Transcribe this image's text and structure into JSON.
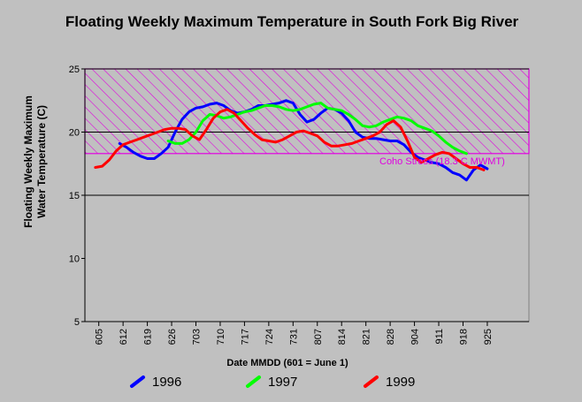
{
  "chart_data": {
    "type": "line",
    "title": "Floating Weekly Maximum Temperature in South Fork Big River",
    "xlabel": "Date MMDD (601 = June 1)",
    "ylabel_line1": "Floating Weekly Maximum",
    "ylabel_line2": "Water Temperature (C)",
    "xlim": [
      0,
      128
    ],
    "ylim": [
      5,
      25
    ],
    "x_ticks": [
      {
        "day": 4,
        "label": "605"
      },
      {
        "day": 11,
        "label": "612"
      },
      {
        "day": 18,
        "label": "619"
      },
      {
        "day": 25,
        "label": "626"
      },
      {
        "day": 32,
        "label": "703"
      },
      {
        "day": 39,
        "label": "710"
      },
      {
        "day": 46,
        "label": "717"
      },
      {
        "day": 53,
        "label": "724"
      },
      {
        "day": 60,
        "label": "731"
      },
      {
        "day": 67,
        "label": "807"
      },
      {
        "day": 74,
        "label": "814"
      },
      {
        "day": 81,
        "label": "821"
      },
      {
        "day": 88,
        "label": "828"
      },
      {
        "day": 95,
        "label": "904"
      },
      {
        "day": 102,
        "label": "911"
      },
      {
        "day": 109,
        "label": "918"
      },
      {
        "day": 116,
        "label": "925"
      }
    ],
    "y_ticks": [
      5,
      10,
      15,
      20,
      25
    ],
    "gridlines_y": [
      15,
      20,
      25
    ],
    "threshold": {
      "label": "Coho Stress (18.3 C MWMT)",
      "low": 18.3,
      "high": 25,
      "color": "#e000e0"
    },
    "series": [
      {
        "name": "1996",
        "color": "#0000ff",
        "x": [
          10,
          12,
          14,
          16,
          18,
          20,
          22,
          24,
          26,
          28,
          30,
          32,
          34,
          36,
          38,
          40,
          42,
          44,
          46,
          48,
          50,
          52,
          54,
          56,
          58,
          60,
          62,
          64,
          66,
          68,
          70,
          72,
          74,
          76,
          78,
          80,
          82,
          84,
          86,
          88,
          90,
          92,
          94,
          96,
          98,
          100,
          102,
          104,
          106,
          108,
          110,
          112,
          114,
          116
        ],
        "y": [
          19.1,
          18.8,
          18.4,
          18.1,
          17.9,
          17.9,
          18.3,
          18.8,
          20.0,
          21.0,
          21.6,
          21.9,
          22.0,
          22.2,
          22.3,
          22.1,
          21.7,
          21.5,
          21.6,
          21.8,
          22.1,
          22.1,
          22.2,
          22.3,
          22.5,
          22.3,
          21.4,
          20.8,
          21.0,
          21.5,
          21.9,
          21.8,
          21.5,
          20.9,
          20.0,
          19.6,
          19.5,
          19.5,
          19.4,
          19.3,
          19.3,
          19.0,
          18.4,
          18.0,
          17.8,
          17.6,
          17.5,
          17.2,
          16.8,
          16.6,
          16.2,
          17.0,
          17.4,
          17.1
        ]
      },
      {
        "name": "1997",
        "color": "#00ff00",
        "x": [
          24,
          26,
          28,
          30,
          32,
          34,
          36,
          38,
          40,
          42,
          44,
          46,
          48,
          50,
          52,
          54,
          56,
          58,
          60,
          62,
          64,
          66,
          68,
          70,
          72,
          74,
          76,
          78,
          80,
          82,
          84,
          86,
          88,
          90,
          92,
          94,
          96,
          98,
          100,
          102,
          104,
          106,
          108,
          110
        ],
        "y": [
          19.3,
          19.1,
          19.1,
          19.4,
          20.0,
          20.9,
          21.4,
          21.3,
          21.1,
          21.2,
          21.4,
          21.6,
          21.7,
          21.9,
          22.1,
          22.1,
          22.0,
          21.8,
          21.7,
          21.8,
          22.0,
          22.2,
          22.3,
          21.9,
          21.8,
          21.7,
          21.4,
          21.0,
          20.5,
          20.4,
          20.5,
          20.8,
          21.0,
          21.2,
          21.1,
          20.9,
          20.5,
          20.3,
          20.1,
          19.7,
          19.2,
          18.8,
          18.5,
          18.3
        ]
      },
      {
        "name": "1999",
        "color": "#ff0000",
        "x": [
          3,
          5,
          7,
          9,
          11,
          13,
          15,
          17,
          19,
          21,
          23,
          25,
          27,
          29,
          31,
          33,
          35,
          37,
          39,
          41,
          43,
          45,
          47,
          49,
          51,
          53,
          55,
          57,
          59,
          61,
          63,
          65,
          67,
          69,
          71,
          73,
          75,
          77,
          79,
          81,
          83,
          85,
          87,
          89,
          91,
          93,
          95,
          97,
          99,
          101,
          103,
          105,
          107,
          109,
          111,
          113,
          115
        ],
        "y": [
          17.2,
          17.3,
          17.8,
          18.5,
          19.0,
          19.2,
          19.4,
          19.6,
          19.8,
          20.0,
          20.2,
          20.3,
          20.3,
          20.2,
          19.7,
          19.4,
          20.2,
          21.1,
          21.6,
          21.8,
          21.5,
          20.9,
          20.3,
          19.8,
          19.4,
          19.3,
          19.2,
          19.4,
          19.7,
          20.0,
          20.1,
          19.9,
          19.7,
          19.2,
          18.9,
          18.9,
          19.0,
          19.1,
          19.3,
          19.5,
          19.7,
          20.0,
          20.6,
          20.9,
          20.4,
          19.3,
          18.0,
          17.6,
          17.9,
          18.2,
          18.4,
          18.3,
          17.9,
          17.5,
          17.2,
          17.2,
          17.0
        ]
      }
    ]
  }
}
